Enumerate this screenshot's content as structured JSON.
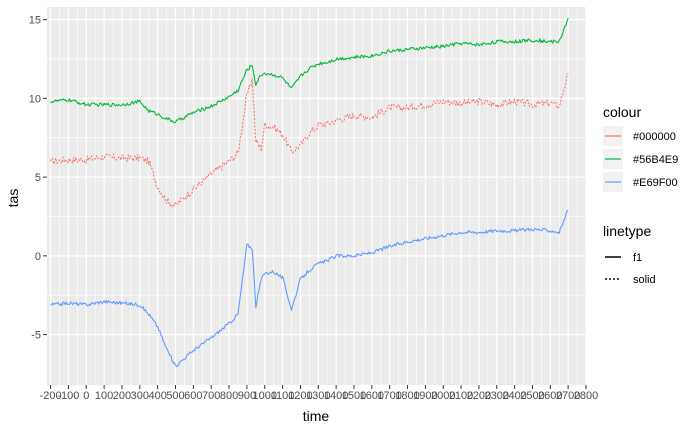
{
  "chart_data": {
    "type": "line",
    "xlabel": "time",
    "ylabel": "tas",
    "xlim": [
      -220,
      2800
    ],
    "ylim": [
      -8.2,
      15.8
    ],
    "x_ticks": [
      {
        "value": -200,
        "label": "-200"
      },
      {
        "value": -100,
        "label": "-100"
      },
      {
        "value": 0,
        "label": "0"
      },
      {
        "value": 100,
        "label": "100"
      },
      {
        "value": 200,
        "label": "200"
      },
      {
        "value": 300,
        "label": "300"
      },
      {
        "value": 400,
        "label": "400"
      },
      {
        "value": 500,
        "label": "500"
      },
      {
        "value": 600,
        "label": "600"
      },
      {
        "value": 700,
        "label": "700"
      },
      {
        "value": 800,
        "label": "800"
      },
      {
        "value": 900,
        "label": "900"
      },
      {
        "value": 1000,
        "label": "1000"
      },
      {
        "value": 1100,
        "label": "1100"
      },
      {
        "value": 1200,
        "label": "1200"
      },
      {
        "value": 1300,
        "label": "1300"
      },
      {
        "value": 1400,
        "label": "1400"
      },
      {
        "value": 1500,
        "label": "1500"
      },
      {
        "value": 1600,
        "label": "1600"
      },
      {
        "value": 1700,
        "label": "1700"
      },
      {
        "value": 1800,
        "label": "1800"
      },
      {
        "value": 1900,
        "label": "1900"
      },
      {
        "value": 2000,
        "label": "2000"
      },
      {
        "value": 2100,
        "label": "2100"
      },
      {
        "value": 2200,
        "label": "2200"
      },
      {
        "value": 2300,
        "label": "2300"
      },
      {
        "value": 2400,
        "label": "2400"
      },
      {
        "value": 2500,
        "label": "2500"
      },
      {
        "value": 2600,
        "label": "2600"
      },
      {
        "value": 2700,
        "label": "2700"
      },
      {
        "value": 2800,
        "label": "2800"
      }
    ],
    "y_ticks": [
      {
        "value": -5,
        "label": "-5"
      },
      {
        "value": 0,
        "label": "0"
      },
      {
        "value": 5,
        "label": "5"
      },
      {
        "value": 10,
        "label": "10"
      },
      {
        "value": 15,
        "label": "15"
      }
    ],
    "series": [
      {
        "name": "#000000",
        "color": "#F8766D",
        "linetype": "solid",
        "x": [
          -200,
          -100,
          0,
          100,
          200,
          300,
          350,
          400,
          450,
          500,
          550,
          600,
          700,
          800,
          850,
          900,
          930,
          950,
          980,
          1000,
          1050,
          1100,
          1150,
          1200,
          1250,
          1300,
          1350,
          1400,
          1500,
          1600,
          1700,
          1800,
          1900,
          2000,
          2100,
          2200,
          2300,
          2400,
          2500,
          2600,
          2650,
          2700
        ],
        "y": [
          6.0,
          6.1,
          6.1,
          6.3,
          6.2,
          6.2,
          6.0,
          4.4,
          3.5,
          3.2,
          3.7,
          4.2,
          5.2,
          6.0,
          6.5,
          10.2,
          11.2,
          7.3,
          6.8,
          8.3,
          8.2,
          7.7,
          6.6,
          7.0,
          7.8,
          8.3,
          8.4,
          8.6,
          8.9,
          8.8,
          9.4,
          9.4,
          9.6,
          9.8,
          9.7,
          9.8,
          9.6,
          9.8,
          9.6,
          9.7,
          9.5,
          11.6
        ]
      },
      {
        "name": "#56B4E9",
        "color": "#00BA38",
        "linetype": "f1",
        "x": [
          -200,
          -100,
          0,
          100,
          200,
          300,
          350,
          400,
          450,
          500,
          550,
          600,
          700,
          800,
          850,
          900,
          930,
          950,
          980,
          1000,
          1050,
          1100,
          1150,
          1200,
          1250,
          1300,
          1350,
          1400,
          1500,
          1600,
          1700,
          1800,
          1900,
          2000,
          2100,
          2200,
          2300,
          2400,
          2500,
          2600,
          2650,
          2700
        ],
        "y": [
          9.8,
          9.9,
          9.6,
          9.6,
          9.6,
          9.8,
          9.2,
          9.0,
          8.7,
          8.5,
          8.8,
          9.1,
          9.5,
          10.1,
          10.5,
          11.8,
          12.1,
          10.9,
          11.5,
          11.6,
          11.5,
          11.3,
          10.6,
          11.4,
          11.9,
          12.2,
          12.3,
          12.5,
          12.6,
          12.7,
          13.0,
          13.1,
          13.2,
          13.3,
          13.5,
          13.4,
          13.6,
          13.6,
          13.7,
          13.6,
          13.6,
          15.1
        ]
      },
      {
        "name": "#E69F00",
        "color": "#619CFF",
        "linetype": "f1",
        "x": [
          -200,
          -100,
          0,
          100,
          200,
          300,
          350,
          400,
          450,
          500,
          550,
          600,
          700,
          800,
          850,
          900,
          930,
          950,
          980,
          1000,
          1050,
          1100,
          1150,
          1200,
          1250,
          1300,
          1350,
          1400,
          1500,
          1600,
          1700,
          1800,
          1900,
          2000,
          2100,
          2200,
          2300,
          2400,
          2500,
          2600,
          2650,
          2700
        ],
        "y": [
          -3.1,
          -3.0,
          -3.1,
          -2.9,
          -3.0,
          -3.1,
          -3.7,
          -4.5,
          -5.9,
          -7.0,
          -6.5,
          -6.0,
          -5.2,
          -4.3,
          -3.7,
          0.7,
          0.5,
          -3.2,
          -1.5,
          -1.1,
          -1.0,
          -1.4,
          -3.4,
          -1.5,
          -0.9,
          -0.5,
          -0.3,
          0.0,
          0.0,
          0.2,
          0.6,
          0.9,
          1.1,
          1.3,
          1.5,
          1.5,
          1.6,
          1.6,
          1.7,
          1.6,
          1.5,
          2.9
        ]
      }
    ],
    "legend": {
      "placement": "right",
      "colour": {
        "title": "colour",
        "items": [
          {
            "label": "#000000",
            "color": "#F8766D"
          },
          {
            "label": "#56B4E9",
            "color": "#00BA38"
          },
          {
            "label": "#E69F00",
            "color": "#619CFF"
          }
        ]
      },
      "linetype": {
        "title": "linetype",
        "items": [
          {
            "label": "f1",
            "dash": "solid"
          },
          {
            "label": "solid",
            "dash": "dotted"
          }
        ]
      }
    },
    "panel_background": "#EBEBEB",
    "grid_color": "#FFFFFF",
    "grid": true
  }
}
